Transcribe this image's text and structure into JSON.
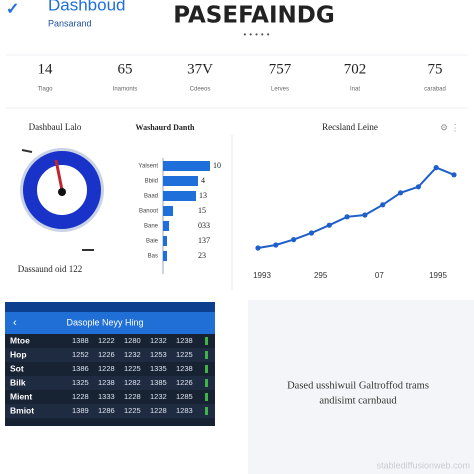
{
  "header": {
    "brand": "Dashboud",
    "subtitle": "Pansarand",
    "title": "PASEFAINDG"
  },
  "kpis": [
    {
      "value": "14",
      "label": "Tlago"
    },
    {
      "value": "65",
      "label": "Inamonts"
    },
    {
      "value": "37V",
      "label": "Cdeeos"
    },
    {
      "value": "757",
      "label": "Lerves"
    },
    {
      "value": "702",
      "label": "Inat"
    },
    {
      "value": "75",
      "label": "carabad"
    }
  ],
  "gauge_panel": {
    "title": "Dashbaul Lalo",
    "caption": "Dassaund oid 122"
  },
  "bar_panel": {
    "title": "Washaurd Danth",
    "categories": [
      "Yalsent",
      "Bbiid",
      "Baad",
      "Banoot",
      "Bane",
      "Baie",
      "Bas"
    ],
    "values": [
      47,
      35,
      33,
      10,
      6,
      4,
      4
    ],
    "xlim": [
      0,
      50
    ],
    "annotations": [
      "10",
      "4",
      "13",
      "15",
      "033",
      "137",
      "23"
    ],
    "color": "#1e6fd9"
  },
  "line_panel": {
    "title": "Recsland Leine",
    "values": [
      10,
      12.5,
      17,
      22.5,
      29,
      36,
      37.5,
      46,
      56,
      61,
      77,
      71
    ],
    "ylim": [
      0,
      100
    ],
    "x_labels": [
      "1993",
      "295",
      "07",
      "1995"
    ],
    "color": "#1e5fc9"
  },
  "table_panel": {
    "title": "Dasople Neyy Hing",
    "rows": [
      [
        "Mtoe",
        "1388",
        "1222",
        "1280",
        "1232",
        "1238"
      ],
      [
        "Hop",
        "1252",
        "1226",
        "1232",
        "1253",
        "1225"
      ],
      [
        "Sot",
        "1386",
        "1228",
        "1225",
        "1335",
        "1238"
      ],
      [
        "Bilk",
        "1325",
        "1238",
        "1282",
        "1385",
        "1226"
      ],
      [
        "Mient",
        "1228",
        "1333",
        "1228",
        "1232",
        "1285"
      ],
      [
        "Bmiot",
        "1389",
        "1286",
        "1225",
        "1228",
        "1283"
      ]
    ]
  },
  "note_panel": {
    "lines": [
      "Dased usshiwuil Galtroffod trams",
      "andisimt carnbaud"
    ]
  },
  "watermark": "stablediffusionweb.com"
}
